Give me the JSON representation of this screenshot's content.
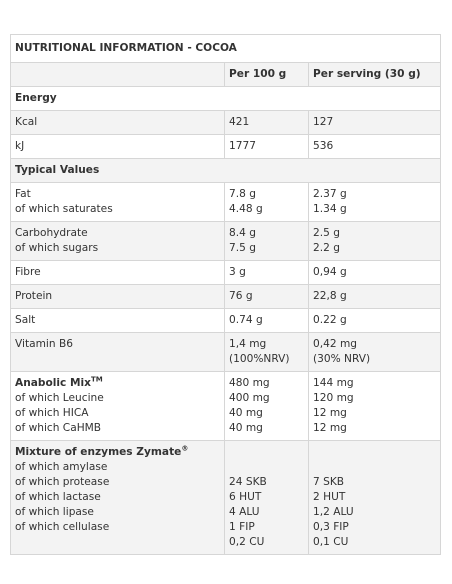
{
  "title": "NUTRITIONAL INFORMATION - COCOA",
  "headers": {
    "col1": "",
    "col2": "Per 100 g",
    "col3": "Per serving (30 g)"
  },
  "sections": {
    "energy": {
      "label": "Energy",
      "kcal": {
        "label": "Kcal",
        "per100": "421",
        "perServing": "127"
      },
      "kj": {
        "label": "kJ",
        "per100": "1777",
        "perServing": "536"
      }
    },
    "typical": {
      "label": "Typical Values",
      "fat": {
        "labels": [
          "Fat",
          "of which saturates"
        ],
        "per100": [
          "7.8 g",
          "4.48 g"
        ],
        "perServing": [
          "2.37 g",
          "1.34 g"
        ]
      },
      "carb": {
        "labels": [
          "Carbohydrate",
          "of which sugars"
        ],
        "per100": [
          "8.4 g",
          "7.5 g"
        ],
        "perServing": [
          "2.5 g",
          "2.2 g"
        ]
      },
      "fibre": {
        "label": "Fibre",
        "per100": "3 g",
        "perServing": "0,94 g"
      },
      "protein": {
        "label": "Protein",
        "per100": "76 g",
        "perServing": "22,8 g"
      },
      "salt": {
        "label": "Salt",
        "per100": "0.74 g",
        "perServing": "0.22 g"
      },
      "b6": {
        "label": "Vitamin B6",
        "per100": [
          "1,4 mg",
          "(100%NRV)"
        ],
        "perServing": [
          "0,42 mg",
          "(30% NRV)"
        ]
      }
    },
    "anabolic": {
      "title": "Anabolic Mix",
      "sup": "TM",
      "labels": [
        "of which Leucine",
        "of which HICA",
        "of which CaHMB"
      ],
      "per100": [
        "480 mg",
        "400 mg",
        "40 mg",
        "40 mg"
      ],
      "perServing": [
        "144 mg",
        "120 mg",
        "12 mg",
        "12 mg"
      ]
    },
    "enzymes": {
      "title": "Mixture of enzymes Zymate",
      "sup": "®",
      "labels": [
        "of which amylase",
        "of which protease",
        "of which lactase",
        "of which lipase",
        "of which cellulase"
      ],
      "per100": [
        "24 SKB",
        "6 HUT",
        "4 ALU",
        "1 FIP",
        "0,2 CU"
      ],
      "perServing": [
        "7 SKB",
        "2 HUT",
        "1,2 ALU",
        "0,3 FIP",
        "0,1 CU"
      ]
    }
  }
}
